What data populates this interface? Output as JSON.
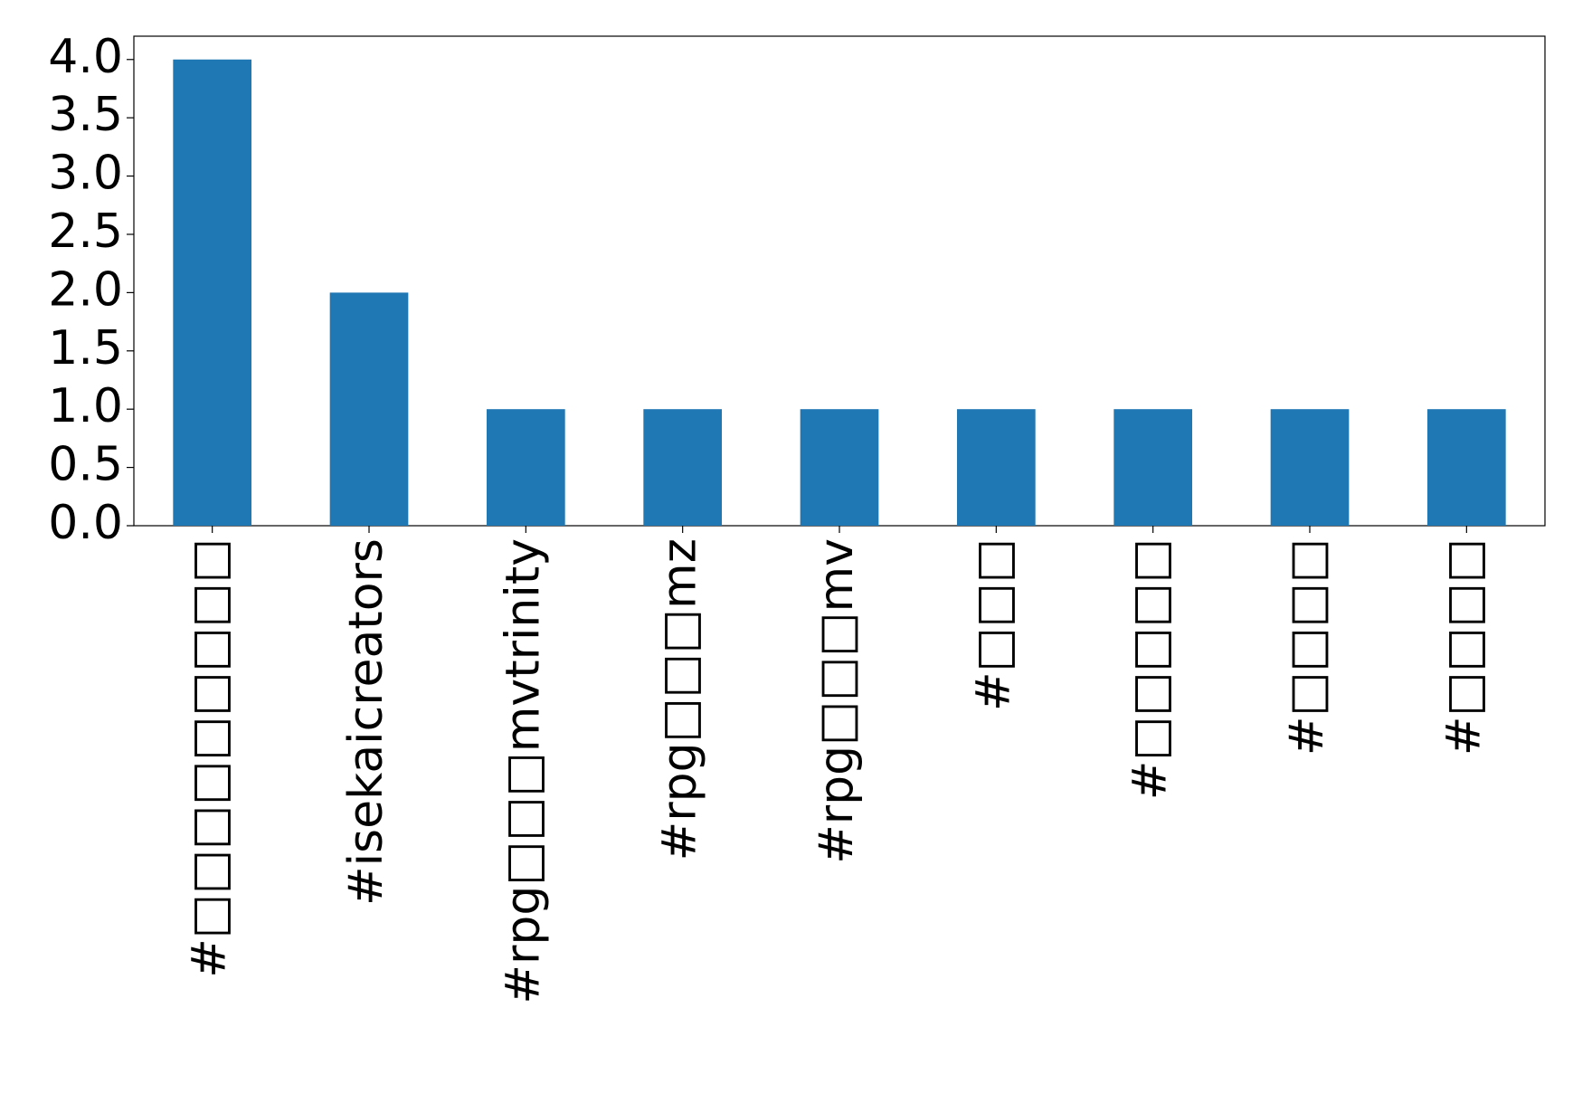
{
  "chart_data": {
    "type": "bar",
    "categories": [
      "#□□□□□□□□□",
      "#isekaicreators",
      "#rpg□□□mvtrinity",
      "#rpg□□□mz",
      "#rpg□□□mv",
      "#□□□",
      "#□□□□□",
      "#□□□□",
      "#□□□□"
    ],
    "values": [
      4,
      2,
      1,
      1,
      1,
      1,
      1,
      1,
      1
    ],
    "color": "#1f77b4",
    "ylim": [
      0,
      4.2
    ],
    "yticks": [
      {
        "value": 0,
        "label": "0.0"
      },
      {
        "value": 0.5,
        "label": "0.5"
      },
      {
        "value": 1,
        "label": "1.0"
      },
      {
        "value": 1.5,
        "label": "1.5"
      },
      {
        "value": 2,
        "label": "2.0"
      },
      {
        "value": 2.5,
        "label": "2.5"
      },
      {
        "value": 3,
        "label": "3.0"
      },
      {
        "value": 3.5,
        "label": "3.5"
      },
      {
        "value": 4,
        "label": "4.0"
      }
    ],
    "grid": false
  }
}
